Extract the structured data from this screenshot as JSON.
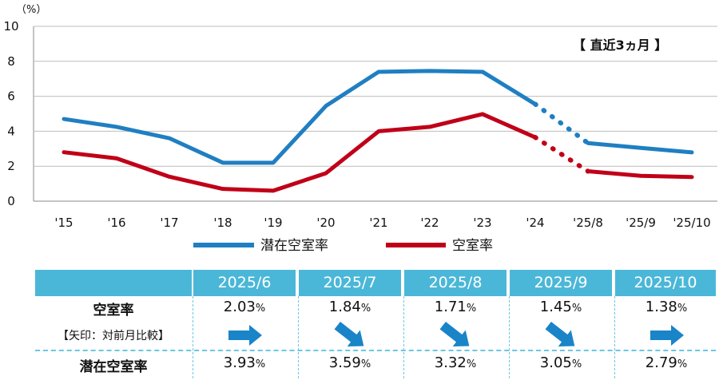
{
  "chart_data": {
    "type": "line",
    "unit_label": "（%）",
    "note": "【 直近3ヵ月 】",
    "categories": [
      "'15",
      "'16",
      "'17",
      "'18",
      "'19",
      "'20",
      "'21",
      "'22",
      "'23",
      "'24",
      "'25/8",
      "'25/9",
      "'25/10"
    ],
    "ylim": [
      0,
      10
    ],
    "yticks": [
      0,
      2,
      4,
      6,
      8,
      10
    ],
    "series": [
      {
        "name": "潜在空室率",
        "color": "#1f7fc2",
        "values": [
          4.7,
          4.25,
          3.6,
          2.2,
          2.2,
          5.45,
          7.4,
          7.45,
          7.4,
          5.55,
          3.32,
          3.05,
          2.79
        ]
      },
      {
        "name": "空室率",
        "color": "#c00018",
        "values": [
          2.8,
          2.45,
          1.4,
          0.7,
          0.6,
          1.6,
          4.0,
          4.25,
          4.98,
          3.65,
          1.71,
          1.45,
          1.38
        ]
      }
    ]
  },
  "table": {
    "months": [
      "2025/6",
      "2025/7",
      "2025/8",
      "2025/9",
      "2025/10"
    ],
    "vacancy_label": "空室率",
    "arrow_label": "【矢印：対前月比較】",
    "potential_label": "潜在空室率",
    "vacancy": [
      "2.03",
      "1.84",
      "1.71",
      "1.45",
      "1.38"
    ],
    "potential": [
      "3.93",
      "3.59",
      "3.32",
      "3.05",
      "2.79"
    ],
    "percent_sign": "%",
    "arrows": [
      "right",
      "down-right",
      "down-right",
      "down-right",
      "right"
    ],
    "arrow_color": "#1a84c8"
  }
}
